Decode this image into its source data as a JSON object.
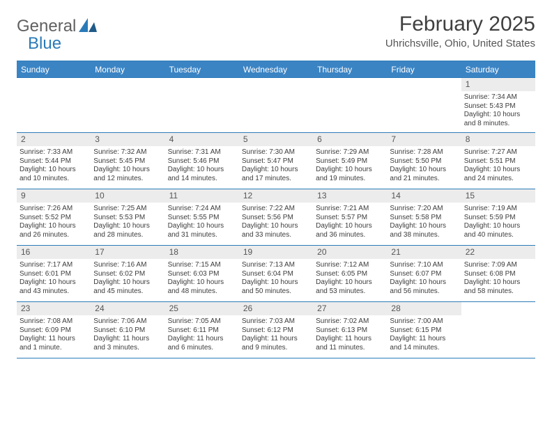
{
  "logo": {
    "text1": "General",
    "text2": "Blue"
  },
  "title": "February 2025",
  "location": "Uhrichsville, Ohio, United States",
  "day_headers": [
    "Sunday",
    "Monday",
    "Tuesday",
    "Wednesday",
    "Thursday",
    "Friday",
    "Saturday"
  ],
  "colors": {
    "header_bg": "#3b84c4",
    "rule": "#2a7ab8",
    "daynum_bg": "#ececec"
  },
  "fonts": {
    "title_pt": 30,
    "location_pt": 15,
    "header_pt": 12,
    "daynum_pt": 12,
    "body_pt": 10
  },
  "weeks": [
    [
      null,
      null,
      null,
      null,
      null,
      null,
      {
        "n": "1",
        "sunrise": "Sunrise: 7:34 AM",
        "sunset": "Sunset: 5:43 PM",
        "daylight": "Daylight: 10 hours and 8 minutes."
      }
    ],
    [
      {
        "n": "2",
        "sunrise": "Sunrise: 7:33 AM",
        "sunset": "Sunset: 5:44 PM",
        "daylight": "Daylight: 10 hours and 10 minutes."
      },
      {
        "n": "3",
        "sunrise": "Sunrise: 7:32 AM",
        "sunset": "Sunset: 5:45 PM",
        "daylight": "Daylight: 10 hours and 12 minutes."
      },
      {
        "n": "4",
        "sunrise": "Sunrise: 7:31 AM",
        "sunset": "Sunset: 5:46 PM",
        "daylight": "Daylight: 10 hours and 14 minutes."
      },
      {
        "n": "5",
        "sunrise": "Sunrise: 7:30 AM",
        "sunset": "Sunset: 5:47 PM",
        "daylight": "Daylight: 10 hours and 17 minutes."
      },
      {
        "n": "6",
        "sunrise": "Sunrise: 7:29 AM",
        "sunset": "Sunset: 5:49 PM",
        "daylight": "Daylight: 10 hours and 19 minutes."
      },
      {
        "n": "7",
        "sunrise": "Sunrise: 7:28 AM",
        "sunset": "Sunset: 5:50 PM",
        "daylight": "Daylight: 10 hours and 21 minutes."
      },
      {
        "n": "8",
        "sunrise": "Sunrise: 7:27 AM",
        "sunset": "Sunset: 5:51 PM",
        "daylight": "Daylight: 10 hours and 24 minutes."
      }
    ],
    [
      {
        "n": "9",
        "sunrise": "Sunrise: 7:26 AM",
        "sunset": "Sunset: 5:52 PM",
        "daylight": "Daylight: 10 hours and 26 minutes."
      },
      {
        "n": "10",
        "sunrise": "Sunrise: 7:25 AM",
        "sunset": "Sunset: 5:53 PM",
        "daylight": "Daylight: 10 hours and 28 minutes."
      },
      {
        "n": "11",
        "sunrise": "Sunrise: 7:24 AM",
        "sunset": "Sunset: 5:55 PM",
        "daylight": "Daylight: 10 hours and 31 minutes."
      },
      {
        "n": "12",
        "sunrise": "Sunrise: 7:22 AM",
        "sunset": "Sunset: 5:56 PM",
        "daylight": "Daylight: 10 hours and 33 minutes."
      },
      {
        "n": "13",
        "sunrise": "Sunrise: 7:21 AM",
        "sunset": "Sunset: 5:57 PM",
        "daylight": "Daylight: 10 hours and 36 minutes."
      },
      {
        "n": "14",
        "sunrise": "Sunrise: 7:20 AM",
        "sunset": "Sunset: 5:58 PM",
        "daylight": "Daylight: 10 hours and 38 minutes."
      },
      {
        "n": "15",
        "sunrise": "Sunrise: 7:19 AM",
        "sunset": "Sunset: 5:59 PM",
        "daylight": "Daylight: 10 hours and 40 minutes."
      }
    ],
    [
      {
        "n": "16",
        "sunrise": "Sunrise: 7:17 AM",
        "sunset": "Sunset: 6:01 PM",
        "daylight": "Daylight: 10 hours and 43 minutes."
      },
      {
        "n": "17",
        "sunrise": "Sunrise: 7:16 AM",
        "sunset": "Sunset: 6:02 PM",
        "daylight": "Daylight: 10 hours and 45 minutes."
      },
      {
        "n": "18",
        "sunrise": "Sunrise: 7:15 AM",
        "sunset": "Sunset: 6:03 PM",
        "daylight": "Daylight: 10 hours and 48 minutes."
      },
      {
        "n": "19",
        "sunrise": "Sunrise: 7:13 AM",
        "sunset": "Sunset: 6:04 PM",
        "daylight": "Daylight: 10 hours and 50 minutes."
      },
      {
        "n": "20",
        "sunrise": "Sunrise: 7:12 AM",
        "sunset": "Sunset: 6:05 PM",
        "daylight": "Daylight: 10 hours and 53 minutes."
      },
      {
        "n": "21",
        "sunrise": "Sunrise: 7:10 AM",
        "sunset": "Sunset: 6:07 PM",
        "daylight": "Daylight: 10 hours and 56 minutes."
      },
      {
        "n": "22",
        "sunrise": "Sunrise: 7:09 AM",
        "sunset": "Sunset: 6:08 PM",
        "daylight": "Daylight: 10 hours and 58 minutes."
      }
    ],
    [
      {
        "n": "23",
        "sunrise": "Sunrise: 7:08 AM",
        "sunset": "Sunset: 6:09 PM",
        "daylight": "Daylight: 11 hours and 1 minute."
      },
      {
        "n": "24",
        "sunrise": "Sunrise: 7:06 AM",
        "sunset": "Sunset: 6:10 PM",
        "daylight": "Daylight: 11 hours and 3 minutes."
      },
      {
        "n": "25",
        "sunrise": "Sunrise: 7:05 AM",
        "sunset": "Sunset: 6:11 PM",
        "daylight": "Daylight: 11 hours and 6 minutes."
      },
      {
        "n": "26",
        "sunrise": "Sunrise: 7:03 AM",
        "sunset": "Sunset: 6:12 PM",
        "daylight": "Daylight: 11 hours and 9 minutes."
      },
      {
        "n": "27",
        "sunrise": "Sunrise: 7:02 AM",
        "sunset": "Sunset: 6:13 PM",
        "daylight": "Daylight: 11 hours and 11 minutes."
      },
      {
        "n": "28",
        "sunrise": "Sunrise: 7:00 AM",
        "sunset": "Sunset: 6:15 PM",
        "daylight": "Daylight: 11 hours and 14 minutes."
      },
      null
    ]
  ]
}
